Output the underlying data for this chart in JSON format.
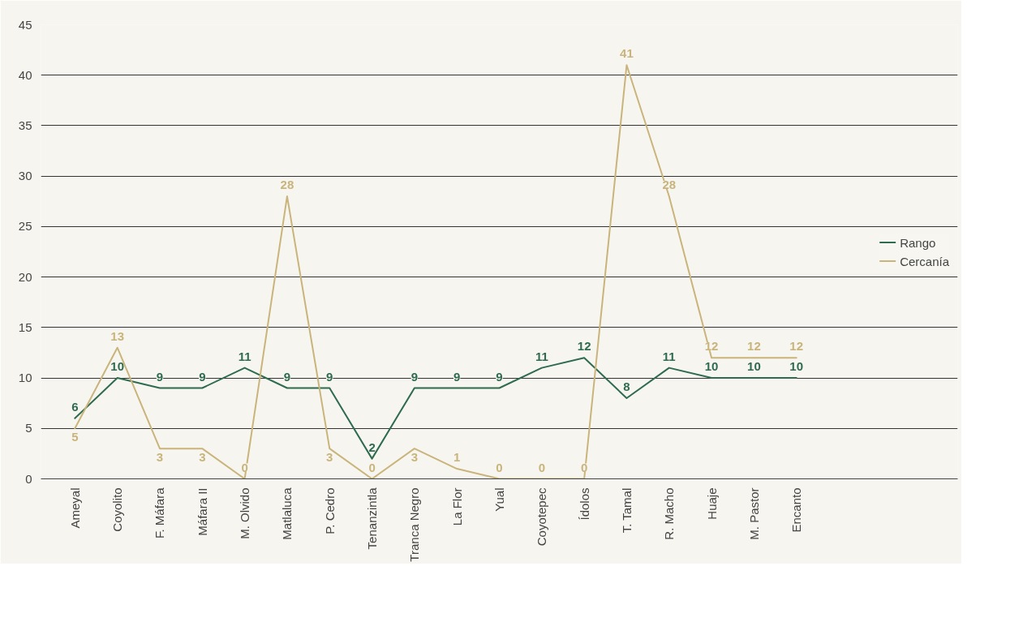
{
  "chart_data": {
    "type": "line",
    "categories": [
      "Ameyal",
      "Coyolito",
      "F. Máfara",
      "Máfara II",
      "M. Olvido",
      "Matlaluca",
      "P. Cedro",
      "Tenanzintla",
      "Tranca Negro",
      "La Flor",
      "Yual",
      "Coyotepec",
      "Ídolos",
      "T. Tamal",
      "R. Macho",
      "Huaje",
      "M. Pastor",
      "Encanto"
    ],
    "series": [
      {
        "name": "Rango",
        "color": "#2e6b4f",
        "values": [
          6,
          10,
          9,
          9,
          11,
          9,
          9,
          2,
          9,
          9,
          9,
          11,
          12,
          8,
          11,
          10,
          10,
          10
        ]
      },
      {
        "name": "Cercanía",
        "color": "#c9b47c",
        "values": [
          5,
          13,
          3,
          3,
          0,
          28,
          3,
          0,
          3,
          1,
          0,
          0,
          0,
          41,
          28,
          12,
          12,
          12
        ]
      }
    ],
    "ylim": [
      0,
      45
    ],
    "yticks": [
      0,
      5,
      10,
      15,
      20,
      25,
      30,
      35,
      40,
      45
    ],
    "grid": "y",
    "legend": "right",
    "data_labels": true,
    "marker": "none",
    "line_style": "solid"
  }
}
